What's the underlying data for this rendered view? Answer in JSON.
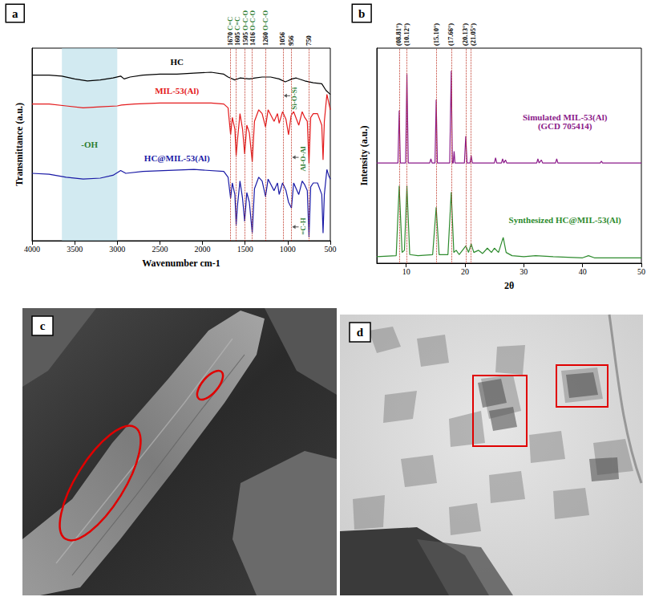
{
  "chart_data": [
    {
      "type": "line",
      "title": "a",
      "x_label": "Wavenumber cm-1",
      "y_label": "Transmittance (a.u.)",
      "xlim": [
        4000,
        500
      ],
      "xticks": [
        4000,
        3500,
        3000,
        2500,
        2000,
        1500,
        1000,
        500
      ],
      "ylim": [
        0,
        100
      ],
      "tick_labels": "x",
      "series": [
        {
          "name": "HC",
          "color": "#000000",
          "x": [
            4000,
            3800,
            3650,
            3500,
            3350,
            3200,
            3050,
            2960,
            2920,
            2850,
            2700,
            2500,
            2300,
            2100,
            1900,
            1750,
            1700,
            1620,
            1560,
            1450,
            1380,
            1300,
            1200,
            1100,
            1030,
            1000,
            950,
            900,
            800,
            700,
            600,
            550,
            500
          ],
          "values": [
            86,
            86,
            85.5,
            84,
            83,
            83.5,
            84.5,
            85.5,
            84,
            85,
            86,
            86.5,
            86.5,
            87,
            87.5,
            86.5,
            85,
            83.5,
            84.5,
            84,
            84.5,
            85,
            85,
            84,
            82.5,
            83,
            84,
            84.5,
            83,
            82,
            81.5,
            78,
            76
          ]
        },
        {
          "name": "MIL-53(Al)",
          "color": "#e41a1c",
          "x": [
            4000,
            3800,
            3600,
            3400,
            3200,
            3000,
            2950,
            2800,
            2500,
            2200,
            1900,
            1750,
            1700,
            1670,
            1650,
            1620,
            1605,
            1590,
            1560,
            1530,
            1505,
            1480,
            1450,
            1416,
            1390,
            1340,
            1300,
            1260,
            1230,
            1160,
            1120,
            1100,
            1060,
            1020,
            990,
            960,
            930,
            870,
            830,
            800,
            770,
            750,
            730,
            700,
            650,
            600,
            585,
            570,
            540,
            520,
            500
          ],
          "values": [
            71,
            71,
            70,
            69,
            69.5,
            70,
            70.5,
            71,
            71.5,
            71.5,
            71.5,
            71,
            69,
            55,
            64,
            58,
            44,
            52,
            66,
            58,
            45,
            60,
            56,
            41,
            62,
            68,
            66,
            59,
            68,
            62,
            66,
            61,
            67,
            63,
            55,
            65,
            67,
            60,
            67,
            64,
            62,
            40,
            64,
            66,
            66,
            60,
            42,
            62,
            76,
            72,
            68
          ]
        },
        {
          "name": "HC@MIL-53(Al)",
          "color": "#1a1aa6",
          "x": [
            4000,
            3800,
            3600,
            3400,
            3200,
            3050,
            2960,
            2900,
            2700,
            2400,
            2100,
            1750,
            1700,
            1670,
            1650,
            1620,
            1605,
            1590,
            1560,
            1530,
            1505,
            1480,
            1450,
            1416,
            1390,
            1340,
            1300,
            1260,
            1230,
            1160,
            1120,
            1100,
            1060,
            1020,
            990,
            956,
            930,
            870,
            830,
            800,
            770,
            750,
            730,
            700,
            650,
            600,
            585,
            570,
            540,
            520,
            500
          ],
          "values": [
            35,
            34.5,
            33,
            32,
            32.5,
            34,
            36.5,
            35,
            36,
            36.5,
            37,
            36,
            33,
            22,
            30,
            24,
            8,
            18,
            31,
            22,
            10,
            25,
            20,
            4,
            27,
            33,
            31,
            23,
            32,
            26,
            30,
            24,
            30,
            26,
            20,
            17,
            30,
            24,
            31,
            29,
            26,
            2,
            28,
            30,
            30,
            24,
            4,
            24,
            37,
            34,
            32
          ]
        }
      ],
      "bands": [
        {
          "x": [
            3650,
            3000
          ],
          "text": "-OH"
        }
      ],
      "vlines": [
        {
          "x": 1670,
          "text": "1670",
          "note": "C=C"
        },
        {
          "x": 1605,
          "text": "1605",
          "note": "C=C"
        },
        {
          "x": 1505,
          "text": "1505",
          "note": "O-C-O"
        },
        {
          "x": 1416,
          "text": "1416",
          "note": "O-C-O"
        },
        {
          "x": 1260,
          "text": "1260",
          "note": "O-C-O"
        },
        {
          "x": 1056,
          "text": "1056"
        },
        {
          "x": 956,
          "text": "956"
        },
        {
          "x": 750,
          "text": "750"
        }
      ],
      "annotations": [
        {
          "x": 1056,
          "text": "Si-O-Si"
        },
        {
          "x": 956,
          "text": "Al-O-Al"
        },
        {
          "x": 956,
          "text": "=C-H"
        }
      ]
    },
    {
      "type": "line",
      "title": "b",
      "x_label": "2θ",
      "y_label": "Intensity (a.u.)",
      "xlim": [
        5,
        50
      ],
      "xticks": [
        10,
        20,
        30,
        40,
        50
      ],
      "ylim": [
        0,
        100
      ],
      "tick_labels": "x",
      "series": [
        {
          "name": "Simulated MIL-53(Al)\n(GCD 705414)",
          "color": "#8b1a89",
          "x": [
            5,
            8.6,
            8.81,
            9.0,
            9.9,
            10.12,
            10.35,
            14.0,
            14.2,
            14.4,
            14.9,
            15.1,
            15.3,
            17.4,
            17.66,
            17.85,
            18.0,
            18.15,
            18.3,
            19.9,
            20.13,
            20.35,
            20.85,
            21.05,
            21.25,
            25.0,
            25.2,
            25.4,
            26.2,
            26.4,
            26.6,
            26.9,
            27.1,
            32.2,
            32.4,
            32.6,
            33.0,
            33.2,
            35.4,
            35.6,
            35.8,
            43,
            43.2,
            43.4,
            50
          ],
          "values": [
            46.6,
            46.6,
            71,
            46.6,
            46.6,
            88,
            46.6,
            46.6,
            48.5,
            46.6,
            46.6,
            76,
            46.6,
            46.6,
            89.5,
            46.6,
            46.6,
            52,
            46.6,
            46.6,
            59,
            46.6,
            46.6,
            50,
            46.6,
            46.6,
            49,
            46.6,
            46.6,
            48.5,
            46.6,
            48,
            46.6,
            46.6,
            48.5,
            46.6,
            48,
            46.6,
            46.6,
            48.5,
            46.6,
            46.6,
            47.5,
            46.6,
            46.6
          ]
        },
        {
          "name": "Synthesized HC@MIL-53(Al)",
          "color": "#2e8b2e",
          "x": [
            5,
            8.3,
            8.81,
            9.3,
            9.7,
            10.12,
            10.6,
            12,
            14.5,
            15.1,
            15.6,
            17.1,
            17.66,
            18.1,
            18.5,
            19,
            20.13,
            20.6,
            21.05,
            21.5,
            22.3,
            23,
            23.8,
            24.5,
            25,
            25.7,
            26.5,
            27,
            28,
            30,
            32,
            35,
            40,
            41,
            42,
            45,
            50
          ],
          "values": [
            3,
            3.5,
            36,
            5,
            6,
            36,
            4,
            3.5,
            4,
            26,
            4,
            4,
            33,
            5,
            6,
            4,
            8,
            5,
            9,
            5,
            6,
            4.5,
            7,
            5,
            7,
            5,
            12,
            5,
            3.5,
            3,
            3.5,
            3,
            2.5,
            3.5,
            2.5,
            2.5,
            2.5
          ]
        }
      ],
      "vlines": [
        {
          "x": 8.81,
          "text": "(08.81°)"
        },
        {
          "x": 10.12,
          "text": "(10.12°)"
        },
        {
          "x": 15.1,
          "text": "(15.10°)"
        },
        {
          "x": 17.66,
          "text": "(17.66°)"
        },
        {
          "x": 20.13,
          "text": "(20.13°)"
        },
        {
          "x": 21.05,
          "text": "(21.05°)"
        }
      ]
    }
  ],
  "images": [
    {
      "title": "c"
    },
    {
      "title": "d"
    }
  ]
}
